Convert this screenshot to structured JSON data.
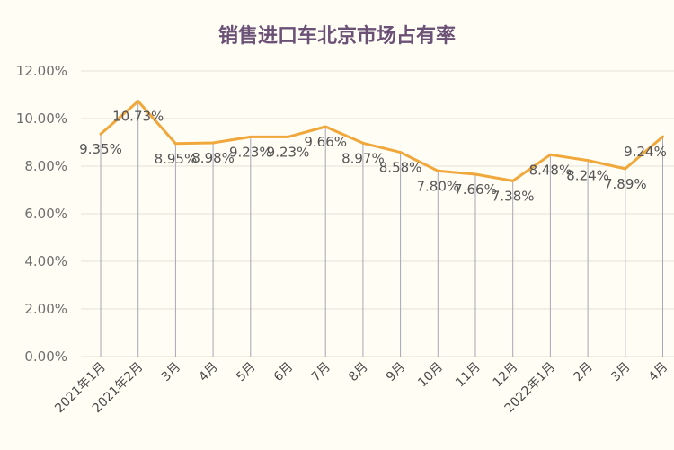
{
  "chart_data": {
    "type": "line",
    "title": "销售进口车北京市场占有率",
    "xlabel": "",
    "ylabel": "",
    "categories": [
      "2021年1月",
      "2021年2月",
      "3月",
      "4月",
      "5月",
      "6月",
      "7月",
      "8月",
      "9月",
      "10月",
      "11月",
      "12月",
      "2022年1月",
      "2月",
      "3月",
      "4月"
    ],
    "series": [
      {
        "values": [
          9.35,
          10.73,
          8.95,
          8.98,
          9.23,
          9.23,
          9.66,
          8.97,
          8.58,
          7.8,
          7.66,
          7.38,
          8.48,
          8.24,
          7.89,
          9.24
        ],
        "labels": [
          "9.35%",
          "10.73%",
          "8.95%",
          "8.98%",
          "9.23%",
          "9.23%",
          "9.66%",
          "8.97%",
          "8.58%",
          "7.80%",
          "7.66%",
          "7.38%",
          "8.48%",
          "8.24%",
          "7.89%",
          "9.24%"
        ],
        "color": "#f0a83c"
      }
    ],
    "yticks": [
      "0.00%",
      "2.00%",
      "4.00%",
      "6.00%",
      "8.00%",
      "10.00%",
      "12.00%"
    ],
    "ylim": [
      0,
      12
    ],
    "grid": true,
    "legend": "none"
  },
  "colors": {
    "background": "#fffdf4",
    "title": "#6b5176",
    "line": "#f0a83c",
    "gridline": "#e6e2d8",
    "dropline": "#a6a7b5"
  }
}
